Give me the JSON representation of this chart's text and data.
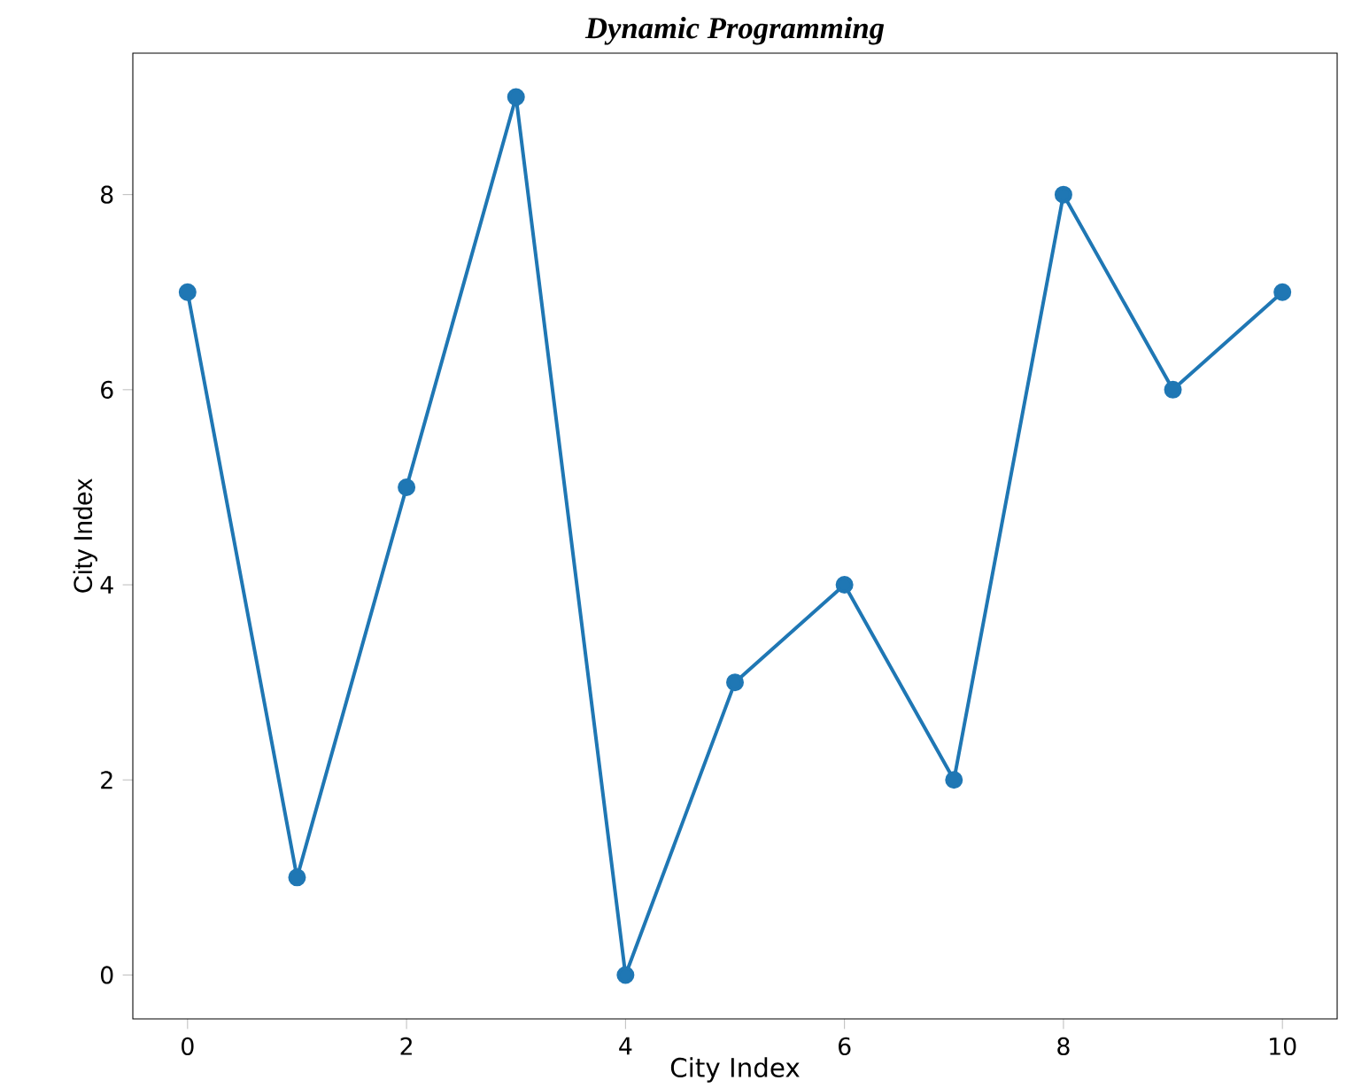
{
  "chart_data": {
    "type": "line",
    "title": "Dynamic Programming",
    "xlabel": "City Index",
    "ylabel": "City Index",
    "x": [
      0,
      1,
      2,
      3,
      4,
      5,
      6,
      7,
      8,
      9,
      10
    ],
    "series": [
      {
        "color": "#1f77b4",
        "values": [
          7,
          1,
          5,
          9,
          0,
          3,
          4,
          2,
          8,
          6,
          7
        ]
      }
    ],
    "xlim": [
      -0.5,
      10.5
    ],
    "ylim": [
      -0.45,
      9.45
    ],
    "xticks": [
      0,
      2,
      4,
      6,
      8,
      10
    ],
    "yticks": [
      0,
      2,
      4,
      6,
      8
    ],
    "marker": "circle",
    "line_style": "solid"
  }
}
